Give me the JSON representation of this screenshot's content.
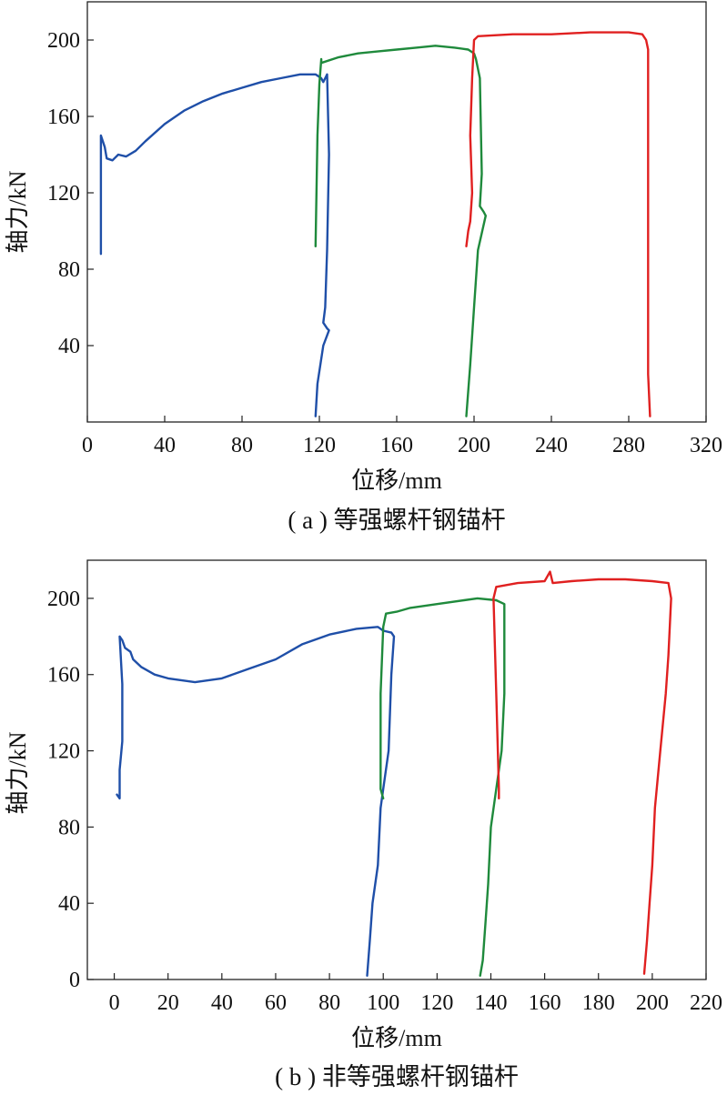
{
  "chart_data": [
    {
      "type": "line",
      "caption": "( a ) 等强螺杆钢锚杆",
      "xlabel": "位移/mm",
      "ylabel": "轴力/kN",
      "xlim": [
        0,
        320
      ],
      "ylim": [
        0,
        220
      ],
      "xticks": [
        0,
        40,
        80,
        120,
        160,
        200,
        240,
        280,
        320
      ],
      "yticks": [
        40,
        80,
        120,
        160,
        200
      ],
      "xtick_labels": [
        "0",
        "40",
        "80",
        "120",
        "160",
        "200",
        "240",
        "280",
        "320"
      ],
      "ytick_labels": [
        "40",
        "80",
        "120",
        "160",
        "200"
      ],
      "grid": false,
      "series": [
        {
          "color": "#1f4fa8",
          "points": [
            [
              7,
              88
            ],
            [
              7,
              150
            ],
            [
              9,
              144
            ],
            [
              10,
              138
            ],
            [
              13,
              137
            ],
            [
              16,
              140
            ],
            [
              20,
              139
            ],
            [
              25,
              142
            ],
            [
              30,
              147
            ],
            [
              40,
              156
            ],
            [
              50,
              163
            ],
            [
              60,
              168
            ],
            [
              70,
              172
            ],
            [
              80,
              175
            ],
            [
              90,
              178
            ],
            [
              100,
              180
            ],
            [
              110,
              182
            ],
            [
              118,
              182
            ],
            [
              121,
              180
            ],
            [
              122,
              178
            ],
            [
              123,
              180
            ],
            [
              124,
              182
            ],
            [
              125,
              140
            ],
            [
              124,
              90
            ],
            [
              123,
              60
            ],
            [
              122,
              52
            ],
            [
              124,
              49
            ],
            [
              125,
              48
            ],
            [
              122,
              40
            ],
            [
              119,
              20
            ],
            [
              118,
              3
            ]
          ]
        },
        {
          "color": "#1f8a3c",
          "points": [
            [
              118,
              92
            ],
            [
              119,
              150
            ],
            [
              120,
              177
            ],
            [
              121,
              190
            ],
            [
              121,
              188
            ],
            [
              130,
              191
            ],
            [
              140,
              193
            ],
            [
              150,
              194
            ],
            [
              160,
              195
            ],
            [
              170,
              196
            ],
            [
              180,
              197
            ],
            [
              190,
              196
            ],
            [
              197,
              195
            ],
            [
              200,
              193
            ],
            [
              201,
              190
            ],
            [
              203,
              180
            ],
            [
              204,
              130
            ],
            [
              203,
              113
            ],
            [
              205,
              110
            ],
            [
              206,
              108
            ],
            [
              202,
              90
            ],
            [
              200,
              60
            ],
            [
              198,
              30
            ],
            [
              196,
              3
            ]
          ]
        },
        {
          "color": "#e02020",
          "points": [
            [
              196,
              92
            ],
            [
              197,
              100
            ],
            [
              198,
              105
            ],
            [
              199,
              120
            ],
            [
              198,
              150
            ],
            [
              199,
              180
            ],
            [
              200,
              200
            ],
            [
              202,
              202
            ],
            [
              220,
              203
            ],
            [
              240,
              203
            ],
            [
              260,
              204
            ],
            [
              280,
              204
            ],
            [
              287,
              203
            ],
            [
              289,
              200
            ],
            [
              290,
              195
            ],
            [
              290,
              160
            ],
            [
              290,
              100
            ],
            [
              290,
              50
            ],
            [
              290,
              25
            ],
            [
              291,
              3
            ]
          ]
        }
      ]
    },
    {
      "type": "line",
      "caption": "( b ) 非等强螺杆钢锚杆",
      "xlabel": "位移/mm",
      "ylabel": "轴力/kN",
      "xlim": [
        -10,
        220
      ],
      "ylim": [
        0,
        220
      ],
      "xticks": [
        0,
        20,
        40,
        60,
        80,
        100,
        120,
        140,
        160,
        180,
        200,
        220
      ],
      "yticks": [
        0,
        40,
        80,
        120,
        160,
        200
      ],
      "xtick_labels": [
        "0",
        "20",
        "40",
        "60",
        "80",
        "100",
        "120",
        "140",
        "160",
        "180",
        "200",
        "220"
      ],
      "ytick_labels": [
        "0",
        "40",
        "80",
        "120",
        "160",
        "200"
      ],
      "grid": false,
      "series": [
        {
          "color": "#1f4fa8",
          "points": [
            [
              1,
              97
            ],
            [
              2,
              95
            ],
            [
              2,
              110
            ],
            [
              3,
              125
            ],
            [
              3,
              155
            ],
            [
              2,
              180
            ],
            [
              3,
              178
            ],
            [
              4,
              174
            ],
            [
              6,
              172
            ],
            [
              7,
              168
            ],
            [
              10,
              164
            ],
            [
              15,
              160
            ],
            [
              20,
              158
            ],
            [
              30,
              156
            ],
            [
              40,
              158
            ],
            [
              50,
              163
            ],
            [
              60,
              168
            ],
            [
              70,
              176
            ],
            [
              80,
              181
            ],
            [
              90,
              184
            ],
            [
              98,
              185
            ],
            [
              100,
              183
            ],
            [
              103,
              182
            ],
            [
              104,
              180
            ],
            [
              103,
              160
            ],
            [
              102,
              120
            ],
            [
              100,
              100
            ],
            [
              99,
              90
            ],
            [
              98,
              60
            ],
            [
              96,
              40
            ],
            [
              95,
              20
            ],
            [
              94,
              2
            ]
          ]
        },
        {
          "color": "#1f8a3c",
          "points": [
            [
              100,
              95
            ],
            [
              99,
              100
            ],
            [
              99,
              150
            ],
            [
              100,
              185
            ],
            [
              101,
              192
            ],
            [
              105,
              193
            ],
            [
              110,
              195
            ],
            [
              120,
              197
            ],
            [
              130,
              199
            ],
            [
              135,
              200
            ],
            [
              142,
              199
            ],
            [
              145,
              197
            ],
            [
              145,
              150
            ],
            [
              144,
              120
            ],
            [
              142,
              100
            ],
            [
              140,
              80
            ],
            [
              139,
              50
            ],
            [
              138,
              30
            ],
            [
              137,
              10
            ],
            [
              136,
              2
            ]
          ]
        },
        {
          "color": "#e02020",
          "points": [
            [
              143,
              95
            ],
            [
              143,
              100
            ],
            [
              142,
              150
            ],
            [
              141,
              200
            ],
            [
              142,
              206
            ],
            [
              150,
              208
            ],
            [
              160,
              209
            ],
            [
              162,
              214
            ],
            [
              163,
              208
            ],
            [
              170,
              209
            ],
            [
              180,
              210
            ],
            [
              190,
              210
            ],
            [
              200,
              209
            ],
            [
              206,
              208
            ],
            [
              207,
              200
            ],
            [
              206,
              170
            ],
            [
              205,
              150
            ],
            [
              203,
              120
            ],
            [
              201,
              90
            ],
            [
              200,
              60
            ],
            [
              199,
              40
            ],
            [
              198,
              20
            ],
            [
              197,
              3
            ]
          ]
        }
      ]
    }
  ]
}
